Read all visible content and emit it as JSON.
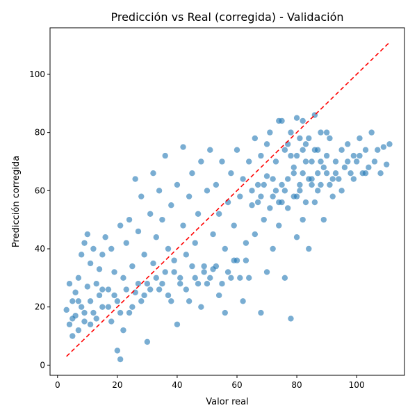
{
  "chart_data": {
    "type": "scatter",
    "title": "Predicción vs Real (corregida) - Validación",
    "xlabel": "Valor real",
    "ylabel": "Predicción corregida",
    "xlim": [
      -2.5,
      116
    ],
    "ylim": [
      -3.5,
      116
    ],
    "xticks": [
      0,
      20,
      40,
      60,
      80,
      100
    ],
    "yticks": [
      0,
      20,
      40,
      60,
      80,
      100
    ],
    "grid": false,
    "series": [
      {
        "marker_color": "#1f77b4",
        "marker_alpha": 0.6,
        "points": [
          [
            3,
            19
          ],
          [
            4,
            14
          ],
          [
            4,
            28
          ],
          [
            5,
            22
          ],
          [
            5,
            10
          ],
          [
            6,
            17
          ],
          [
            6,
            25
          ],
          [
            7,
            12
          ],
          [
            7,
            30
          ],
          [
            8,
            20
          ],
          [
            8,
            38
          ],
          [
            9,
            15
          ],
          [
            9,
            42
          ],
          [
            10,
            27
          ],
          [
            10,
            45
          ],
          [
            11,
            22
          ],
          [
            11,
            35
          ],
          [
            12,
            18
          ],
          [
            12,
            40
          ],
          [
            13,
            28
          ],
          [
            14,
            24
          ],
          [
            14,
            33
          ],
          [
            15,
            20
          ],
          [
            15,
            38
          ],
          [
            16,
            44
          ],
          [
            17,
            26
          ],
          [
            18,
            15
          ],
          [
            18,
            40
          ],
          [
            19,
            32
          ],
          [
            20,
            22
          ],
          [
            20,
            5
          ],
          [
            21,
            2
          ],
          [
            21,
            48
          ],
          [
            22,
            30
          ],
          [
            22,
            12
          ],
          [
            23,
            42
          ],
          [
            24,
            18
          ],
          [
            24,
            50
          ],
          [
            25,
            34
          ],
          [
            26,
            25
          ],
          [
            26,
            64
          ],
          [
            27,
            46
          ],
          [
            28,
            22
          ],
          [
            28,
            58
          ],
          [
            29,
            38
          ],
          [
            30,
            28
          ],
          [
            30,
            8
          ],
          [
            31,
            52
          ],
          [
            32,
            35
          ],
          [
            32,
            66
          ],
          [
            33,
            44
          ],
          [
            34,
            26
          ],
          [
            34,
            60
          ],
          [
            35,
            50
          ],
          [
            36,
            32
          ],
          [
            36,
            72
          ],
          [
            37,
            40
          ],
          [
            38,
            55
          ],
          [
            38,
            22
          ],
          [
            39,
            36
          ],
          [
            40,
            62
          ],
          [
            40,
            14
          ],
          [
            41,
            28
          ],
          [
            42,
            48
          ],
          [
            42,
            75
          ],
          [
            43,
            38
          ],
          [
            44,
            58
          ],
          [
            44,
            22
          ],
          [
            45,
            66
          ],
          [
            46,
            30
          ],
          [
            46,
            42
          ],
          [
            47,
            52
          ],
          [
            48,
            70
          ],
          [
            48,
            20
          ],
          [
            49,
            34
          ],
          [
            50,
            60
          ],
          [
            50,
            28
          ],
          [
            51,
            74
          ],
          [
            52,
            45
          ],
          [
            52,
            33
          ],
          [
            53,
            62
          ],
          [
            54,
            24
          ],
          [
            54,
            52
          ],
          [
            55,
            70
          ],
          [
            56,
            40
          ],
          [
            56,
            18
          ],
          [
            57,
            56
          ],
          [
            58,
            66
          ],
          [
            58,
            30
          ],
          [
            59,
            48
          ],
          [
            60,
            74
          ],
          [
            60,
            36
          ],
          [
            61,
            58
          ],
          [
            62,
            22
          ],
          [
            62,
            64
          ],
          [
            63,
            42
          ],
          [
            64,
            70
          ],
          [
            64,
            30
          ],
          [
            65,
            55
          ],
          [
            66,
            78
          ],
          [
            66,
            45
          ],
          [
            67,
            62
          ],
          [
            68,
            18
          ],
          [
            68,
            72
          ],
          [
            69,
            50
          ],
          [
            70,
            65
          ],
          [
            70,
            32
          ],
          [
            71,
            80
          ],
          [
            72,
            58
          ],
          [
            72,
            40
          ],
          [
            73,
            70
          ],
          [
            74,
            48
          ],
          [
            74,
            84
          ],
          [
            75,
            62
          ],
          [
            76,
            30
          ],
          [
            76,
            74
          ],
          [
            77,
            54
          ],
          [
            78,
            80
          ],
          [
            78,
            16
          ],
          [
            79,
            66
          ],
          [
            80,
            44
          ],
          [
            80,
            72
          ],
          [
            81,
            60
          ],
          [
            82,
            84
          ],
          [
            82,
            50
          ],
          [
            83,
            76
          ],
          [
            84,
            64
          ],
          [
            84,
            40
          ],
          [
            85,
            70
          ],
          [
            86,
            86
          ],
          [
            86,
            56
          ],
          [
            87,
            74
          ],
          [
            88,
            62
          ],
          [
            88,
            80
          ],
          [
            89,
            50
          ],
          [
            90,
            72
          ],
          [
            90,
            66
          ],
          [
            91,
            78
          ],
          [
            92,
            58
          ],
          [
            93,
            70
          ],
          [
            94,
            64
          ],
          [
            95,
            74
          ],
          [
            96,
            68
          ],
          [
            97,
            76
          ],
          [
            98,
            66
          ],
          [
            99,
            72
          ],
          [
            100,
            70
          ],
          [
            101,
            78
          ],
          [
            102,
            66
          ],
          [
            103,
            74
          ],
          [
            104,
            68
          ],
          [
            105,
            80
          ],
          [
            106,
            70
          ],
          [
            107,
            74
          ],
          [
            108,
            66
          ],
          [
            109,
            75
          ],
          [
            110,
            69
          ],
          [
            111,
            76
          ],
          [
            75,
            84
          ],
          [
            80,
            85
          ],
          [
            84,
            78
          ],
          [
            82,
            66
          ],
          [
            78,
            72
          ],
          [
            85,
            62
          ],
          [
            88,
            70
          ],
          [
            76,
            60
          ],
          [
            72,
            64
          ],
          [
            70,
            76
          ],
          [
            68,
            58
          ],
          [
            74,
            56
          ],
          [
            86,
            74
          ],
          [
            90,
            80
          ],
          [
            92,
            64
          ],
          [
            80,
            58
          ],
          [
            82,
            74
          ],
          [
            79,
            68
          ],
          [
            77,
            76
          ],
          [
            83,
            70
          ],
          [
            87,
            66
          ],
          [
            81,
            78
          ],
          [
            9,
            18
          ],
          [
            11,
            14
          ],
          [
            13,
            16
          ],
          [
            7,
            22
          ],
          [
            5,
            16
          ],
          [
            15,
            26
          ],
          [
            17,
            20
          ],
          [
            19,
            24
          ],
          [
            21,
            18
          ],
          [
            23,
            26
          ],
          [
            25,
            20
          ],
          [
            27,
            28
          ],
          [
            29,
            24
          ],
          [
            31,
            26
          ],
          [
            33,
            30
          ],
          [
            35,
            28
          ],
          [
            37,
            24
          ],
          [
            39,
            32
          ],
          [
            41,
            30
          ],
          [
            43,
            26
          ],
          [
            45,
            34
          ],
          [
            47,
            28
          ],
          [
            49,
            32
          ],
          [
            51,
            30
          ],
          [
            53,
            34
          ],
          [
            55,
            28
          ],
          [
            57,
            32
          ],
          [
            59,
            36
          ],
          [
            61,
            30
          ],
          [
            63,
            36
          ],
          [
            65,
            60
          ],
          [
            67,
            56
          ],
          [
            69,
            62
          ],
          [
            71,
            54
          ],
          [
            73,
            60
          ],
          [
            75,
            56
          ],
          [
            77,
            64
          ],
          [
            79,
            58
          ],
          [
            81,
            62
          ],
          [
            83,
            56
          ],
          [
            85,
            64
          ],
          [
            87,
            60
          ],
          [
            89,
            68
          ],
          [
            91,
            62
          ],
          [
            93,
            66
          ],
          [
            95,
            60
          ],
          [
            97,
            70
          ],
          [
            99,
            64
          ],
          [
            101,
            72
          ],
          [
            103,
            66
          ]
        ]
      },
      {
        "line_color": "#ff0000",
        "line_style": "dashed",
        "points": [
          [
            3,
            3
          ],
          [
            111,
            111
          ]
        ]
      }
    ]
  }
}
